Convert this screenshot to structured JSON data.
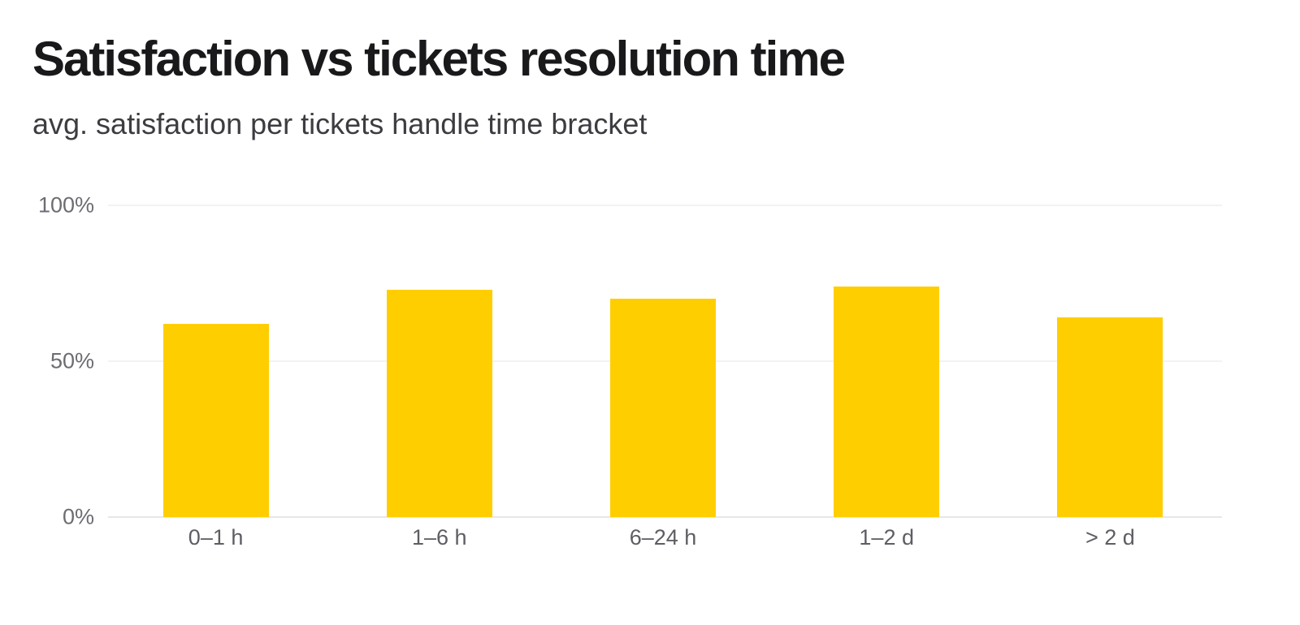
{
  "header": {
    "title": "Satisfaction vs tickets resolution time",
    "subtitle": "avg. satisfaction per tickets handle time bracket"
  },
  "chart_data": {
    "type": "bar",
    "title": "Satisfaction vs tickets resolution time",
    "subtitle": "avg. satisfaction per tickets handle time bracket",
    "categories": [
      "0–1 h",
      "1–6 h",
      "6–24 h",
      "1–2 d",
      "> 2 d"
    ],
    "values": [
      62,
      73,
      70,
      74,
      64
    ],
    "value_unit": "%",
    "xlabel": "",
    "ylabel": "",
    "ylim": [
      0,
      100
    ],
    "yticks": [
      0,
      50,
      100
    ],
    "ytick_labels": [
      "0%",
      "50%",
      "100%"
    ],
    "grid": true,
    "legend": false,
    "bar_color": "#FFCE00"
  },
  "colors": {
    "background": "#FFFFFF",
    "bar": "#FFCE00",
    "title_text": "#19191C",
    "subtitle_text": "#3C3C41",
    "y_tick_text": "#6C6C73",
    "x_tick_text": "#5D5D64",
    "gridline": "#F2F2F4",
    "axis_baseline": "#E7E7EA"
  }
}
